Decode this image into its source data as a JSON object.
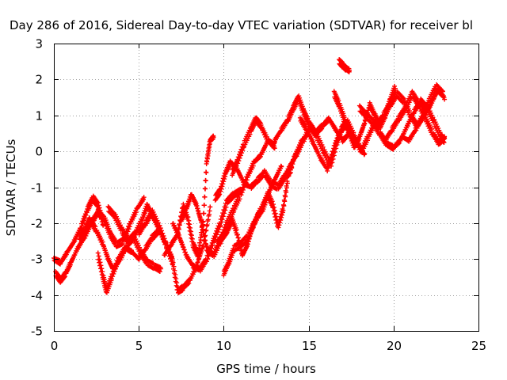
{
  "chart_data": {
    "type": "scatter",
    "title": "Day 286 of 2016, Sidereal Day-to-day VTEC variation (SDTVAR) for receiver bl",
    "xlabel": "GPS time / hours",
    "ylabel": "SDTVAR / TECUs",
    "xlim": [
      0,
      25
    ],
    "ylim": [
      -5,
      3
    ],
    "xticks": [
      0,
      5,
      10,
      15,
      20,
      25
    ],
    "yticks": [
      -5,
      -4,
      -3,
      -2,
      -1,
      0,
      1,
      2,
      3
    ],
    "grid": true,
    "marker": "plus",
    "color": "#ff0000",
    "series": [
      {
        "x": [
          0.0,
          0.4,
          0.8,
          1.2,
          1.6,
          2.0,
          2.3,
          2.6,
          2.9
        ],
        "y": [
          -3.0,
          -3.1,
          -2.8,
          -2.5,
          -2.1,
          -1.6,
          -1.3,
          -1.5,
          -2.0
        ]
      },
      {
        "x": [
          0.1,
          0.4,
          0.7,
          1.0,
          1.4,
          1.8,
          2.2,
          2.6,
          3.0,
          3.3,
          3.7,
          4.1,
          4.5,
          4.9,
          5.3
        ],
        "y": [
          -3.4,
          -3.6,
          -3.4,
          -3.1,
          -2.7,
          -2.4,
          -2.0,
          -1.7,
          -1.9,
          -2.3,
          -2.6,
          -2.5,
          -2.0,
          -1.6,
          -1.3
        ]
      },
      {
        "x": [
          1.5,
          1.8,
          2.1,
          2.5,
          2.9,
          3.2,
          3.5,
          3.9,
          4.3,
          4.7,
          5.1,
          5.5,
          5.9,
          6.3
        ],
        "y": [
          -2.4,
          -2.2,
          -1.9,
          -2.2,
          -2.6,
          -3.0,
          -3.3,
          -3.0,
          -2.6,
          -2.4,
          -2.8,
          -3.1,
          -3.2,
          -3.3
        ]
      },
      {
        "x": [
          2.6,
          2.9,
          3.1,
          3.4,
          3.8,
          4.2,
          4.6,
          5.0,
          5.4,
          5.8,
          6.2
        ],
        "y": [
          -2.9,
          -3.5,
          -3.9,
          -3.5,
          -3.0,
          -2.7,
          -2.8,
          -3.0,
          -2.7,
          -2.4,
          -2.2
        ]
      },
      {
        "x": [
          3.2,
          3.6,
          4.0,
          4.4,
          4.8,
          5.2,
          5.5,
          5.8,
          6.2,
          6.6,
          7.0
        ],
        "y": [
          -1.6,
          -1.8,
          -2.2,
          -2.5,
          -2.3,
          -1.9,
          -1.5,
          -1.8,
          -2.2,
          -2.6,
          -3.0
        ]
      },
      {
        "x": [
          5.0,
          5.4,
          5.8,
          6.2,
          6.6,
          7.0,
          7.3,
          7.6,
          8.0,
          8.4,
          8.8,
          9.2
        ],
        "y": [
          -2.3,
          -2.0,
          -1.7,
          -2.1,
          -2.6,
          -3.1,
          -3.9,
          -3.8,
          -3.6,
          -3.2,
          -2.6,
          -1.6
        ]
      },
      {
        "x": [
          6.5,
          6.9,
          7.3,
          7.6,
          7.9,
          8.2,
          8.5,
          8.8,
          9.0,
          9.2,
          9.4
        ],
        "y": [
          -2.9,
          -2.6,
          -2.3,
          -1.5,
          -1.9,
          -2.6,
          -2.9,
          -1.9,
          -0.3,
          0.3,
          0.4
        ]
      },
      {
        "x": [
          7.0,
          7.4,
          7.8,
          8.2,
          8.6,
          9.0,
          9.4,
          9.8,
          10.2,
          10.6,
          11.0
        ],
        "y": [
          -2.0,
          -2.4,
          -2.9,
          -3.2,
          -3.3,
          -3.0,
          -2.5,
          -2.0,
          -1.4,
          -1.2,
          -1.1
        ]
      },
      {
        "x": [
          7.5,
          7.8,
          8.1,
          8.4,
          8.7,
          9.0,
          9.4,
          9.8,
          10.2,
          10.6,
          11.0,
          11.4,
          11.8,
          12.2,
          12.6,
          13.0
        ],
        "y": [
          -1.9,
          -1.6,
          -1.2,
          -1.5,
          -2.0,
          -2.7,
          -2.9,
          -2.5,
          -2.0,
          -1.6,
          -1.2,
          -0.7,
          -0.3,
          -0.1,
          0.3,
          0.2
        ]
      },
      {
        "x": [
          9.5,
          9.8,
          10.1,
          10.4,
          10.8,
          11.2,
          11.6,
          12.0,
          12.4,
          12.8,
          13.2,
          13.6,
          14.0
        ],
        "y": [
          -1.3,
          -1.1,
          -0.6,
          -0.3,
          -0.5,
          -0.9,
          -1.0,
          -0.8,
          -0.6,
          -0.9,
          -1.0,
          -0.7,
          -0.5
        ]
      },
      {
        "x": [
          9.6,
          9.9,
          10.2,
          10.5,
          10.8,
          11.1,
          11.4,
          11.7,
          12.0,
          12.3,
          12.6,
          12.9,
          13.2,
          13.5,
          13.8,
          14.2,
          14.6,
          15.0
        ],
        "y": [
          -2.6,
          -2.4,
          -2.2,
          -1.9,
          -2.3,
          -2.9,
          -2.6,
          -2.1,
          -1.8,
          -1.6,
          -1.2,
          -1.5,
          -2.1,
          -1.6,
          -0.7,
          -0.1,
          0.3,
          0.5
        ]
      },
      {
        "x": [
          10.5,
          10.8,
          11.2,
          11.6,
          11.9,
          12.2,
          12.6,
          13.0
        ],
        "y": [
          -0.6,
          -0.3,
          0.2,
          0.6,
          0.9,
          0.7,
          0.3,
          0.1
        ]
      },
      {
        "x": [
          10.0,
          10.3,
          10.6,
          11.0,
          11.4,
          11.8,
          12.2,
          12.6,
          13.0,
          13.4
        ],
        "y": [
          -3.4,
          -3.1,
          -2.7,
          -2.6,
          -2.4,
          -2.0,
          -1.6,
          -1.2,
          -0.8,
          -0.4
        ]
      },
      {
        "x": [
          13.0,
          13.4,
          13.8,
          14.1,
          14.4,
          14.7,
          15.0,
          15.4,
          15.8,
          16.2,
          16.6,
          17.0,
          17.4
        ],
        "y": [
          0.3,
          0.6,
          0.9,
          1.2,
          1.5,
          1.1,
          0.8,
          0.5,
          0.7,
          0.9,
          0.6,
          0.3,
          0.5
        ]
      },
      {
        "x": [
          13.5,
          13.9,
          14.3,
          14.7,
          15.1,
          15.5,
          15.9,
          16.3,
          16.7,
          17.1,
          17.5,
          17.9,
          18.3
        ],
        "y": [
          -0.8,
          -0.4,
          -0.1,
          0.3,
          0.7,
          0.4,
          0.0,
          -0.4,
          0.3,
          0.8,
          0.5,
          0.2,
          -0.1
        ]
      },
      {
        "x": [
          14.5,
          14.9,
          15.3,
          15.7,
          16.1,
          16.5,
          16.9,
          17.3,
          17.7,
          18.1,
          18.5,
          18.9
        ],
        "y": [
          0.9,
          0.6,
          0.2,
          -0.2,
          -0.5,
          0.1,
          0.6,
          0.8,
          0.4,
          0.0,
          0.4,
          0.8
        ]
      },
      {
        "x": [
          16.8,
          17.0,
          17.2,
          17.4
        ],
        "y": [
          2.5,
          2.4,
          2.3,
          2.25
        ]
      },
      {
        "x": [
          16.5,
          16.8,
          17.1,
          17.4,
          17.7,
          18.0,
          18.3,
          18.6,
          18.9,
          19.2,
          19.5,
          19.8,
          20.1
        ],
        "y": [
          1.6,
          1.3,
          0.9,
          0.5,
          0.1,
          0.4,
          0.8,
          1.3,
          1.0,
          0.7,
          1.0,
          1.4,
          1.8
        ]
      },
      {
        "x": [
          18.0,
          18.4,
          18.8,
          19.2,
          19.6,
          20.0,
          20.4,
          20.8,
          21.2,
          21.6,
          22.0,
          22.4,
          22.8,
          23.0
        ],
        "y": [
          1.2,
          1.0,
          0.8,
          0.5,
          0.2,
          0.1,
          0.3,
          0.7,
          1.1,
          1.4,
          1.2,
          0.8,
          0.4,
          0.3
        ]
      },
      {
        "x": [
          19.0,
          19.4,
          19.8,
          20.2,
          20.6,
          21.0,
          21.4,
          21.8,
          22.2,
          22.6,
          23.0
        ],
        "y": [
          0.7,
          1.0,
          1.3,
          1.6,
          1.4,
          1.0,
          0.7,
          1.0,
          1.3,
          1.7,
          1.5
        ]
      },
      {
        "x": [
          19.5,
          19.9,
          20.3,
          20.7,
          21.1,
          21.5,
          21.9,
          22.3,
          22.7,
          23.0
        ],
        "y": [
          0.3,
          0.6,
          0.9,
          1.2,
          1.6,
          1.3,
          0.9,
          0.5,
          0.2,
          0.4
        ]
      },
      {
        "x": [
          20.5,
          20.9,
          21.3,
          21.7,
          22.1,
          22.5,
          22.9
        ],
        "y": [
          0.4,
          0.3,
          0.6,
          1.0,
          1.4,
          1.8,
          1.6
        ]
      }
    ]
  }
}
